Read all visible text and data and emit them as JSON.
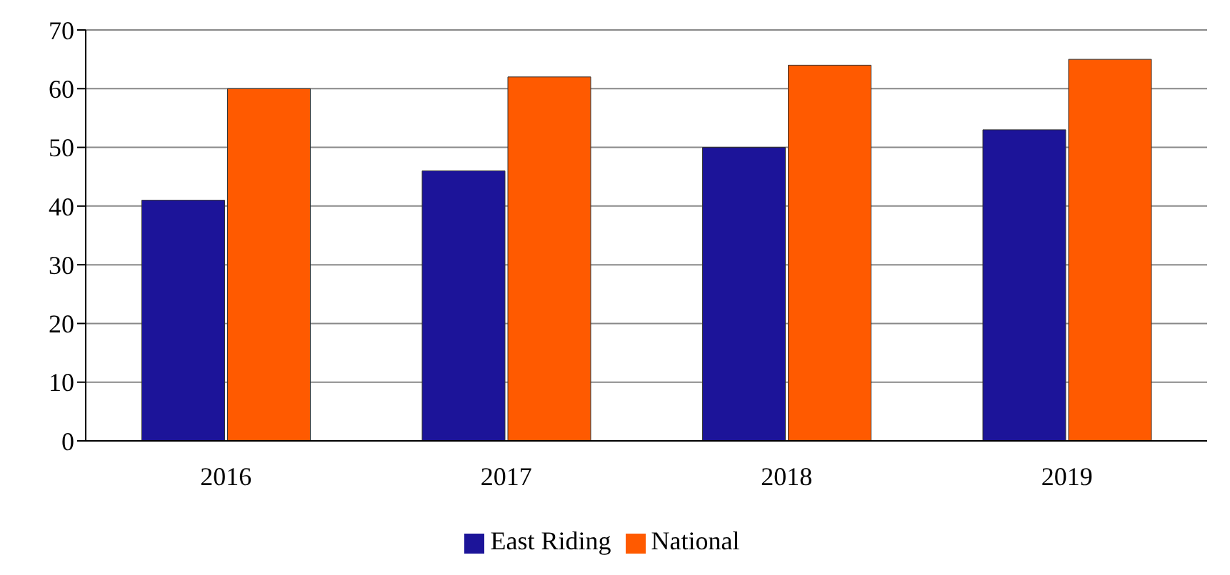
{
  "chart_data": {
    "type": "bar",
    "categories": [
      "2016",
      "2017",
      "2018",
      "2019"
    ],
    "series": [
      {
        "name": "East Riding",
        "color": "#1c1499",
        "values": [
          41,
          46,
          50,
          53
        ]
      },
      {
        "name": "National",
        "color": "#ff5a00",
        "values": [
          60,
          62,
          64,
          65
        ]
      }
    ],
    "ylim": [
      0,
      70
    ],
    "yticks": [
      0,
      10,
      20,
      30,
      40,
      50,
      60,
      70
    ],
    "grid": "y",
    "legend": "bottom"
  }
}
